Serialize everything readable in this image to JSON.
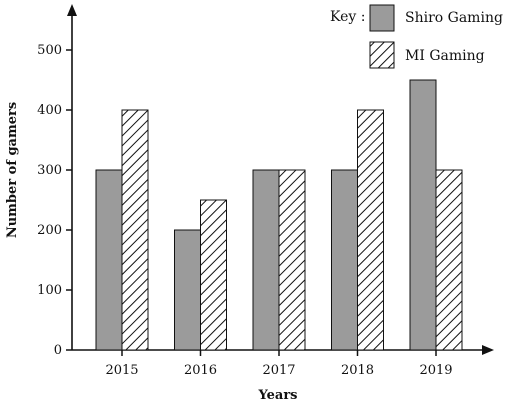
{
  "chart_data": {
    "type": "bar",
    "categories": [
      "2015",
      "2016",
      "2017",
      "2018",
      "2019"
    ],
    "series": [
      {
        "name": "Shiro Gaming",
        "values": [
          300,
          200,
          300,
          300,
          450
        ],
        "color": "#9b9b9b",
        "pattern": "solid"
      },
      {
        "name": "MI Gaming",
        "values": [
          400,
          250,
          300,
          400,
          300
        ],
        "color": "#ffffff",
        "pattern": "diagonal-hatch"
      }
    ],
    "xlabel": "Years",
    "ylabel": "Number of gamers",
    "yticks": [
      0,
      100,
      200,
      300,
      400,
      500
    ],
    "ylim": [
      0,
      500
    ],
    "legend_title": "Key :",
    "legend_position": "top-right",
    "grid": false
  }
}
